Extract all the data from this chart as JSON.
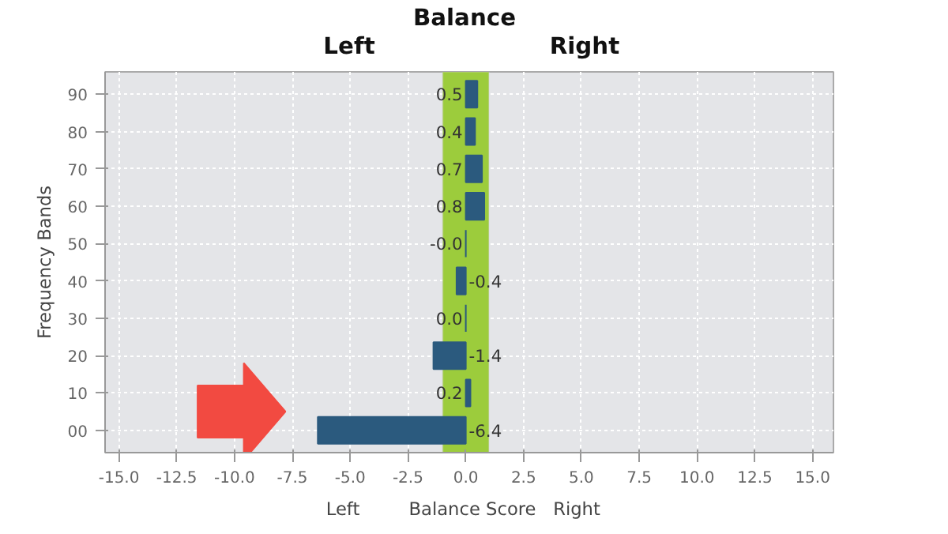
{
  "chart_data": {
    "type": "bar",
    "orientation": "horizontal",
    "title": "Balance",
    "xlabel": "Balance Score",
    "ylabel": "Frequency Bands",
    "categories": [
      "90",
      "80",
      "70",
      "60",
      "50",
      "40",
      "30",
      "20",
      "10",
      "00"
    ],
    "values": [
      0.5,
      0.4,
      0.7,
      0.8,
      0.0,
      -0.4,
      0.0,
      -1.4,
      0.2,
      -6.4
    ],
    "value_labels": [
      "0.5",
      "0.4",
      "0.7",
      "0.8",
      "-0.0",
      "-0.4",
      "0.0",
      "-1.4",
      "0.2",
      "-6.4"
    ],
    "color": "#2b5a7e",
    "xlim": [
      -15.6,
      15.9
    ],
    "xticks": [
      {
        "value": -15,
        "label": "-15.0"
      },
      {
        "value": -12.5,
        "label": "-12.5"
      },
      {
        "value": -10,
        "label": "-10.0"
      },
      {
        "value": -7.5,
        "label": "-7.5"
      },
      {
        "value": -5,
        "label": "-5.0"
      },
      {
        "value": -2.5,
        "label": "-2.5"
      },
      {
        "value": 0,
        "label": "0.0"
      },
      {
        "value": 2.5,
        "label": "2.5"
      },
      {
        "value": 5,
        "label": "5.0"
      },
      {
        "value": 7.5,
        "label": "7.5"
      },
      {
        "value": 10,
        "label": "10.0"
      },
      {
        "value": 12.5,
        "label": "12.5"
      },
      {
        "value": 15,
        "label": "15.0"
      }
    ],
    "bands": [
      {
        "axis": "x",
        "from": -1,
        "to": 1,
        "color": "#9ccc3c"
      }
    ],
    "annotations": [
      "Left",
      "Right",
      "Left",
      "Right"
    ],
    "grid": true
  }
}
